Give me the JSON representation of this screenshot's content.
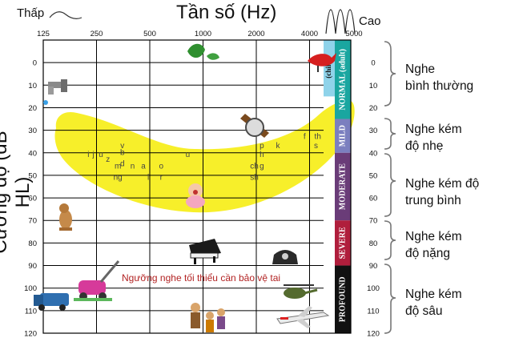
{
  "chart_data": {
    "type": "audiogram",
    "title": "Tần số (Hz)",
    "ylabel": "Cường độ (dB HL)",
    "low_label": "Thấp",
    "high_label": "Cao",
    "x_ticks": [
      "125",
      "250",
      "500",
      "1000",
      "2000",
      "4000",
      "5000"
    ],
    "y_ticks": [
      0,
      10,
      20,
      30,
      40,
      50,
      60,
      70,
      80,
      90,
      100,
      110,
      120
    ],
    "ylim": [
      -10,
      120
    ],
    "bands": [
      {
        "label": "NORMAL (adult)",
        "sub": "(child)",
        "from": -10,
        "to": 25,
        "color": "#1aa6a0"
      },
      {
        "label": "MILD",
        "from": 25,
        "to": 40,
        "color": "#7b7fbf"
      },
      {
        "label": "MODERATE",
        "from": 40,
        "to": 70,
        "color": "#6a3c78"
      },
      {
        "label": "SEVERE",
        "from": 70,
        "to": 90,
        "color": "#b01e3c"
      },
      {
        "label": "PROFOUND",
        "from": 90,
        "to": 120,
        "color": "#111111"
      }
    ],
    "categories": [
      {
        "label": "Nghe bình thường",
        "lines": [
          "Nghe",
          "bình thường"
        ]
      },
      {
        "label": "Nghe kém độ nhẹ",
        "lines": [
          "Nghe kém",
          "độ nhẹ"
        ]
      },
      {
        "label": "Nghe kém độ trung bình",
        "lines": [
          "Nghe kém độ",
          "trung bình"
        ]
      },
      {
        "label": "Nghe kém độ nặng",
        "lines": [
          "Nghe kém",
          "độ nặng"
        ]
      },
      {
        "label": "Nghe kém độ sâu",
        "lines": [
          "Nghe kém",
          "độ sâu"
        ]
      }
    ],
    "speech_sounds": [
      {
        "t": "i",
        "f": 225,
        "db": 41
      },
      {
        "t": "j",
        "f": 240,
        "db": 41
      },
      {
        "t": "u",
        "f": 265,
        "db": 41
      },
      {
        "t": "z",
        "f": 290,
        "db": 43
      },
      {
        "t": "v",
        "f": 350,
        "db": 37
      },
      {
        "t": "b",
        "f": 350,
        "db": 40
      },
      {
        "t": "d",
        "f": 350,
        "db": 45
      },
      {
        "t": "m",
        "f": 330,
        "db": 46
      },
      {
        "t": "n",
        "f": 400,
        "db": 46
      },
      {
        "t": "a",
        "f": 460,
        "db": 46
      },
      {
        "t": "o",
        "f": 580,
        "db": 46
      },
      {
        "t": "ng",
        "f": 330,
        "db": 51
      },
      {
        "t": "l",
        "f": 490,
        "db": 51
      },
      {
        "t": "r",
        "f": 580,
        "db": 51
      },
      {
        "t": "u",
        "f": 820,
        "db": 41
      },
      {
        "t": "p",
        "f": 2150,
        "db": 37
      },
      {
        "t": "h",
        "f": 2150,
        "db": 41
      },
      {
        "t": "g",
        "f": 2150,
        "db": 46
      },
      {
        "t": "ch",
        "f": 1950,
        "db": 46
      },
      {
        "t": "sh",
        "f": 1950,
        "db": 51
      },
      {
        "t": "k",
        "f": 2650,
        "db": 37
      },
      {
        "t": "f",
        "f": 3750,
        "db": 33
      },
      {
        "t": "th",
        "f": 4450,
        "db": 33
      },
      {
        "t": "s",
        "f": 4350,
        "db": 37
      }
    ],
    "threshold_note": "Ngưỡng nghe tối thiểu cần bảo vệ tai",
    "colors": {
      "banana": "#f7ef2a",
      "note": "#b22222",
      "grid": "#000000"
    },
    "illustrations": [
      "faucet-icon",
      "leaves-icon",
      "bird-icon",
      "watch-icon",
      "baby-icon",
      "dog-icon",
      "piano-icon",
      "telephone-icon",
      "lawnmower-icon",
      "truck-icon",
      "band-icon",
      "helicopter-icon",
      "airplane-icon"
    ]
  }
}
